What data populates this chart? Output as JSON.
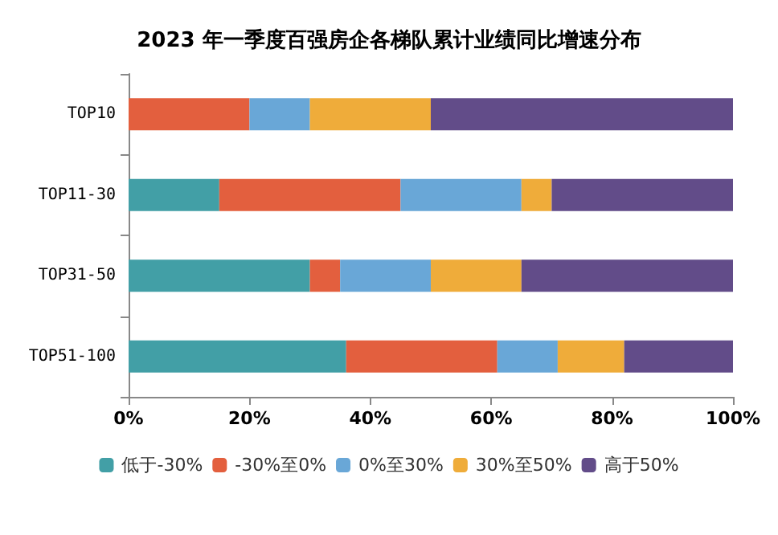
{
  "chart_data": {
    "type": "bar",
    "orientation": "horizontal",
    "stacked": true,
    "title": "2023 年一季度百强房企各梯队累计业绩同比增速分布",
    "categories": [
      "TOP10",
      "TOP11-30",
      "TOP31-50",
      "TOP51-100"
    ],
    "series": [
      {
        "name": "低于-30%",
        "color": "#429fa6",
        "values": [
          0,
          15,
          30,
          36
        ]
      },
      {
        "name": "-30%至0%",
        "color": "#e35f3e",
        "values": [
          20,
          30,
          5,
          25
        ]
      },
      {
        "name": "0%至30%",
        "color": "#69a7d7",
        "values": [
          10,
          20,
          15,
          10
        ]
      },
      {
        "name": "30%至50%",
        "color": "#efac3a",
        "values": [
          20,
          5,
          15,
          11
        ]
      },
      {
        "name": "高于50%",
        "color": "#624c89",
        "values": [
          50,
          30,
          35,
          18
        ]
      }
    ],
    "xlim": [
      0,
      100
    ],
    "xticks": [
      {
        "value": 0,
        "label": "0%"
      },
      {
        "value": 20,
        "label": "20%"
      },
      {
        "value": 40,
        "label": "40%"
      },
      {
        "value": 60,
        "label": "60%"
      },
      {
        "value": 80,
        "label": "80%"
      },
      {
        "value": 100,
        "label": "100%"
      }
    ],
    "grid": false,
    "legend": "bottom"
  }
}
